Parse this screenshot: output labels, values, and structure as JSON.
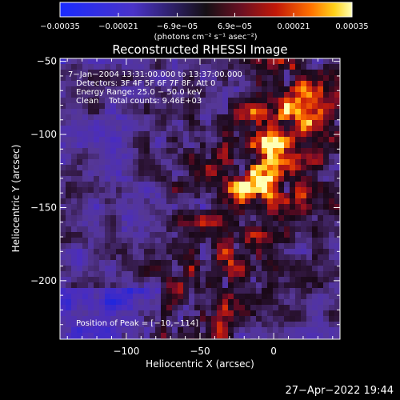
{
  "chart_data": {
    "type": "heatmap",
    "title": "Reconstructed RHESSI Image",
    "xlabel": "Heliocentric X (arcsec)",
    "ylabel": "Heliocentric Y (arcsec)",
    "xlim": [
      -145,
      45
    ],
    "ylim": [
      -240,
      -48
    ],
    "x_ticks": [
      {
        "value": -100,
        "label": "−100"
      },
      {
        "value": -50,
        "label": "−50"
      },
      {
        "value": 0,
        "label": "0"
      }
    ],
    "y_ticks": [
      {
        "value": -50,
        "label": "−50"
      },
      {
        "value": -100,
        "label": "−100"
      },
      {
        "value": -150,
        "label": "−150"
      },
      {
        "value": -200,
        "label": "−200"
      }
    ],
    "colorbar": {
      "range": [
        -0.00035,
        0.00035
      ],
      "tick_values": [
        -0.00035,
        -0.00021,
        -6.9e-05,
        6.9e-05,
        0.00021,
        0.00035
      ],
      "tick_labels": [
        "−0.00035",
        "−0.00021",
        "−6.9e−05",
        "6.9e−05",
        "0.00021",
        "0.00035"
      ],
      "label": "(photons cm⁻² s⁻¹ asec⁻²)"
    },
    "annotations": [
      "7−Jan−2004 13:31:00.000 to 13:37:00.000",
      "Detectors: 3F 4F 5F 6F 7F 8F, Att 0",
      "Energy Range: 25.0 − 50.0 keV",
      "Clean    Total counts: 9.46E+03"
    ],
    "peak_label": "Position of Peak = [−10,−114]",
    "peak": {
      "x": -10,
      "y": -114
    },
    "grid": false,
    "colors": {
      "background": "#000000",
      "foreground": "#ffffff"
    }
  },
  "footer": {
    "timestamp": "27−Apr−2022 19:44"
  }
}
